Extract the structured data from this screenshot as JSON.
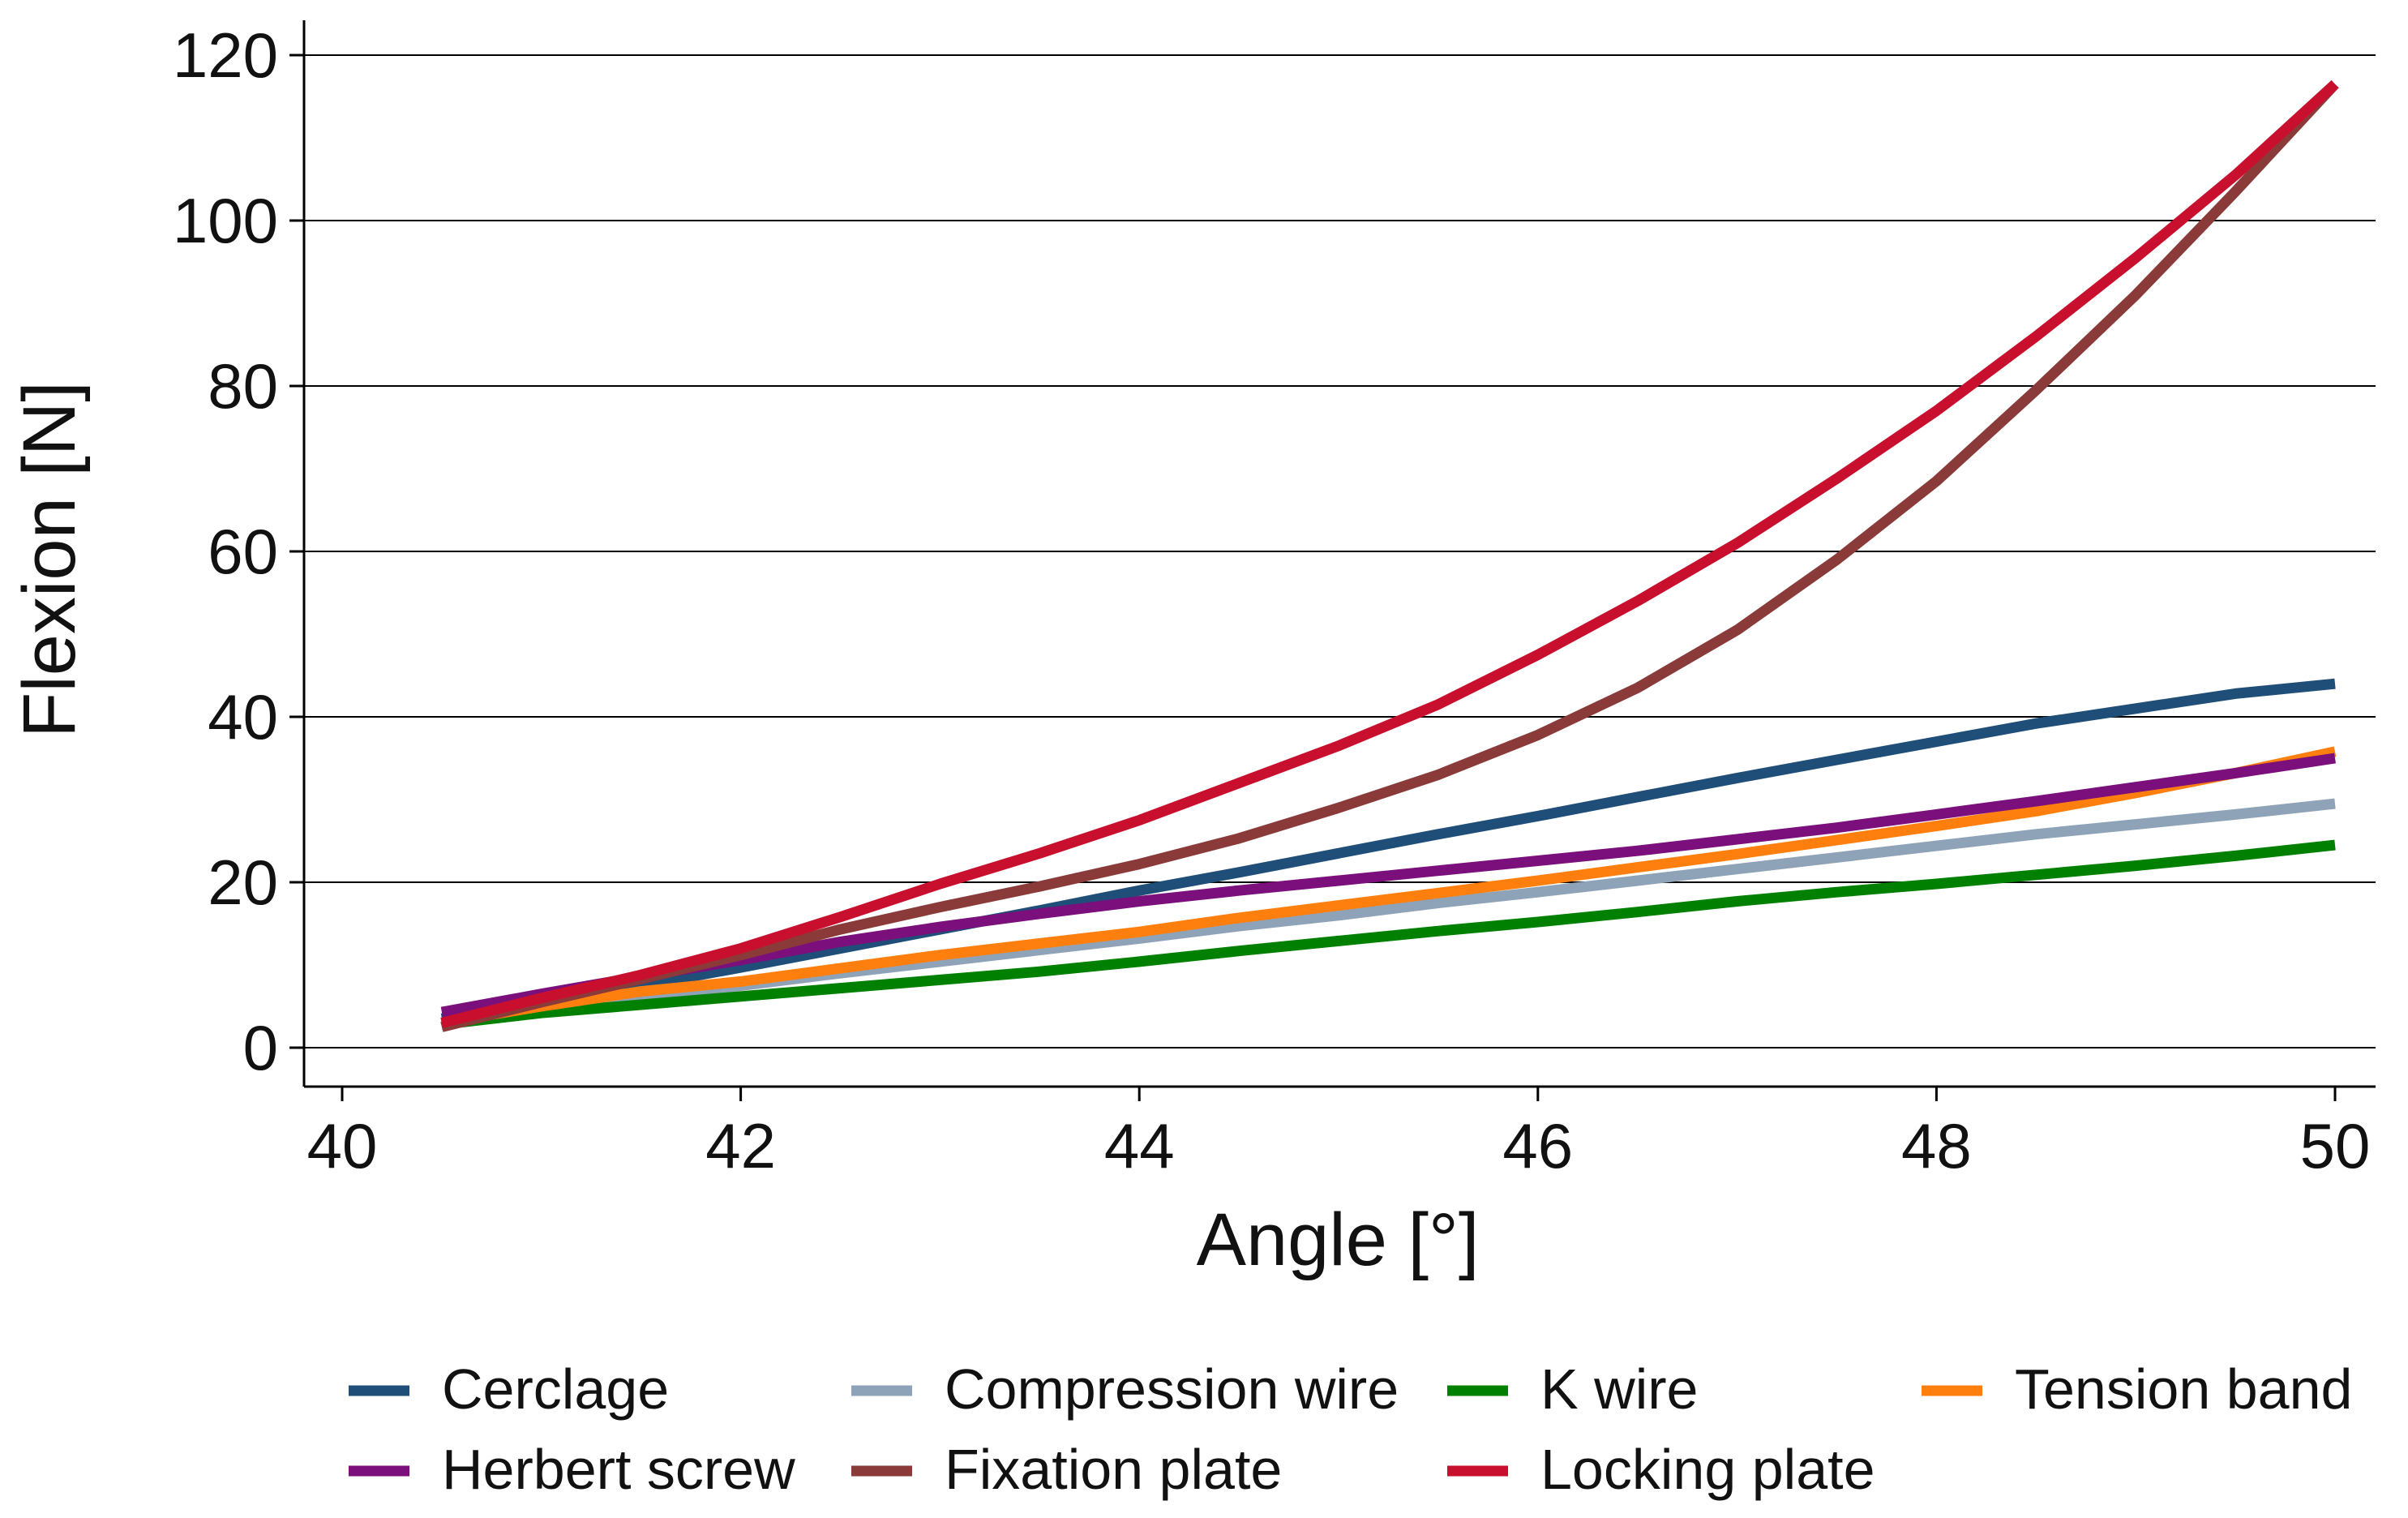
{
  "chart_data": {
    "type": "line",
    "title": "",
    "xlabel": "Angle [°]",
    "ylabel": "Flexion [N]",
    "xlim": [
      40,
      50
    ],
    "ylim": [
      0,
      120
    ],
    "xticks": [
      40,
      42,
      44,
      46,
      48,
      50
    ],
    "yticks": [
      0,
      20,
      40,
      60,
      80,
      100,
      120
    ],
    "grid": "horizontal",
    "legend_position": "bottom",
    "x": [
      40.5,
      41,
      41.5,
      42,
      42.5,
      43,
      43.5,
      44,
      44.5,
      45,
      45.5,
      46,
      46.5,
      47,
      47.5,
      48,
      48.5,
      49,
      49.5,
      50
    ],
    "series": [
      {
        "name": "Cerclage",
        "color": "#1f4e79",
        "values": [
          3.5,
          5.5,
          7.5,
          9.7,
          12.0,
          14.3,
          16.6,
          19.0,
          21.2,
          23.5,
          25.8,
          28.0,
          30.3,
          32.6,
          34.8,
          37.0,
          39.2,
          41.0,
          42.8,
          44.0
        ]
      },
      {
        "name": "Compression wire",
        "color": "#8fa3b8",
        "values": [
          2.8,
          4.6,
          6.1,
          7.5,
          9.0,
          10.4,
          11.8,
          13.2,
          14.7,
          16.0,
          17.5,
          18.8,
          20.2,
          21.6,
          23.0,
          24.4,
          25.8,
          27.0,
          28.2,
          29.5
        ]
      },
      {
        "name": "K wire",
        "color": "#008000",
        "values": [
          2.8,
          4.2,
          5.2,
          6.2,
          7.2,
          8.2,
          9.2,
          10.4,
          11.7,
          12.9,
          14.1,
          15.2,
          16.4,
          17.7,
          18.8,
          19.8,
          20.9,
          22.0,
          23.2,
          24.5
        ]
      },
      {
        "name": "Tension band",
        "color": "#ff7f0e",
        "values": [
          3.0,
          5.0,
          6.8,
          8.0,
          9.6,
          11.2,
          12.6,
          14.0,
          15.7,
          17.2,
          18.7,
          20.2,
          21.8,
          23.4,
          25.1,
          26.8,
          28.6,
          30.8,
          33.2,
          35.8
        ]
      },
      {
        "name": "Herbert screw",
        "color": "#7b0f7b",
        "values": [
          4.3,
          6.5,
          8.6,
          10.6,
          12.8,
          14.6,
          16.2,
          17.7,
          19.0,
          20.2,
          21.4,
          22.6,
          23.8,
          25.2,
          26.6,
          28.2,
          29.8,
          31.5,
          33.2,
          35.0
        ]
      },
      {
        "name": "Fixation plate",
        "color": "#8b3a3a",
        "values": [
          2.5,
          5.5,
          8.3,
          11.2,
          14.3,
          17.0,
          19.5,
          22.2,
          25.3,
          29.0,
          33.0,
          37.8,
          43.5,
          50.5,
          59.0,
          68.5,
          79.5,
          91.0,
          103.5,
          116.5
        ]
      },
      {
        "name": "Locking plate",
        "color": "#c8102e",
        "values": [
          3.0,
          6.0,
          8.8,
          12.0,
          15.8,
          19.8,
          23.5,
          27.5,
          32.0,
          36.5,
          41.5,
          47.5,
          54.0,
          61.0,
          68.8,
          77.0,
          86.0,
          95.5,
          105.5,
          116.5
        ]
      }
    ]
  }
}
